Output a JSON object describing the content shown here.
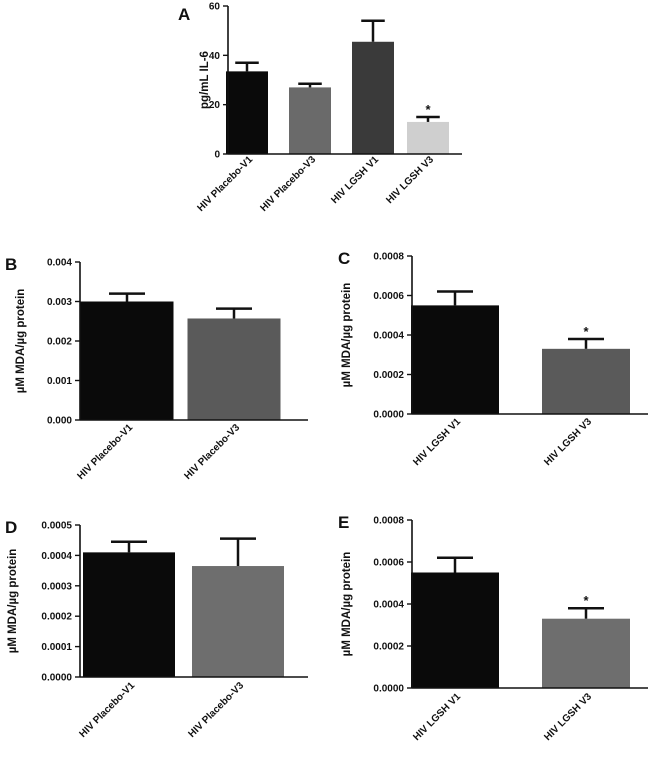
{
  "chart_data": [
    {
      "panel": "A",
      "type": "bar",
      "categories": [
        "HIV Placebo-V1",
        "HIV Placebo-V3",
        "HIV LGSH V1",
        "HIV LGSH V3"
      ],
      "values": [
        33.5,
        27,
        45.5,
        13
      ],
      "errors": [
        3.5,
        1.5,
        8.5,
        2
      ],
      "bar_colors": [
        "#0a0a0a",
        "#6a6a6a",
        "#3a3a3a",
        "#cfcfcf"
      ],
      "significance": [
        "",
        "",
        "",
        "*"
      ],
      "ylabel": "pg/mL IL-6",
      "ylim": [
        0,
        60
      ],
      "yticks": [
        "0",
        "20",
        "40",
        "60"
      ]
    },
    {
      "panel": "B",
      "type": "bar",
      "categories": [
        "HIV Placebo-V1",
        "HIV Placebo-V3"
      ],
      "values": [
        0.003,
        0.00257
      ],
      "errors": [
        0.0002,
        0.00025
      ],
      "bar_colors": [
        "#0a0a0a",
        "#5a5a5a"
      ],
      "significance": [
        "",
        ""
      ],
      "ylabel": "µM MDA/µg protein",
      "ylim": [
        0,
        0.004
      ],
      "yticks": [
        "0.000",
        "0.001",
        "0.002",
        "0.003",
        "0.004"
      ]
    },
    {
      "panel": "C",
      "type": "bar",
      "categories": [
        "HIV LGSH V1",
        "HIV LGSH V3"
      ],
      "values": [
        0.00055,
        0.00033
      ],
      "errors": [
        7e-05,
        5e-05
      ],
      "bar_colors": [
        "#0a0a0a",
        "#5a5a5a"
      ],
      "significance": [
        "",
        "*"
      ],
      "ylabel": "µM MDA/µg protein",
      "ylim": [
        0,
        0.0008
      ],
      "yticks": [
        "0.0000",
        "0.0002",
        "0.0004",
        "0.0006",
        "0.0008"
      ]
    },
    {
      "panel": "D",
      "type": "bar",
      "categories": [
        "HIV Placebo-V1",
        "HIV Placebo-V3"
      ],
      "values": [
        0.00041,
        0.000365
      ],
      "errors": [
        3.5e-05,
        9e-05
      ],
      "bar_colors": [
        "#0a0a0a",
        "#6e6e6e"
      ],
      "significance": [
        "",
        ""
      ],
      "ylabel": "µM MDA/µg protein",
      "ylim": [
        0,
        0.0005
      ],
      "yticks": [
        "0.0000",
        "0.0001",
        "0.0002",
        "0.0003",
        "0.0004",
        "0.0005"
      ]
    },
    {
      "panel": "E",
      "type": "bar",
      "categories": [
        "HIV LGSH V1",
        "HIV LGSH V3"
      ],
      "values": [
        0.00055,
        0.00033
      ],
      "errors": [
        7e-05,
        5e-05
      ],
      "bar_colors": [
        "#0a0a0a",
        "#6e6e6e"
      ],
      "significance": [
        "",
        "*"
      ],
      "ylabel": "µM MDA/µg protein",
      "ylim": [
        0,
        0.0008
      ],
      "yticks": [
        "0.0000",
        "0.0002",
        "0.0004",
        "0.0006",
        "0.0008"
      ]
    }
  ]
}
